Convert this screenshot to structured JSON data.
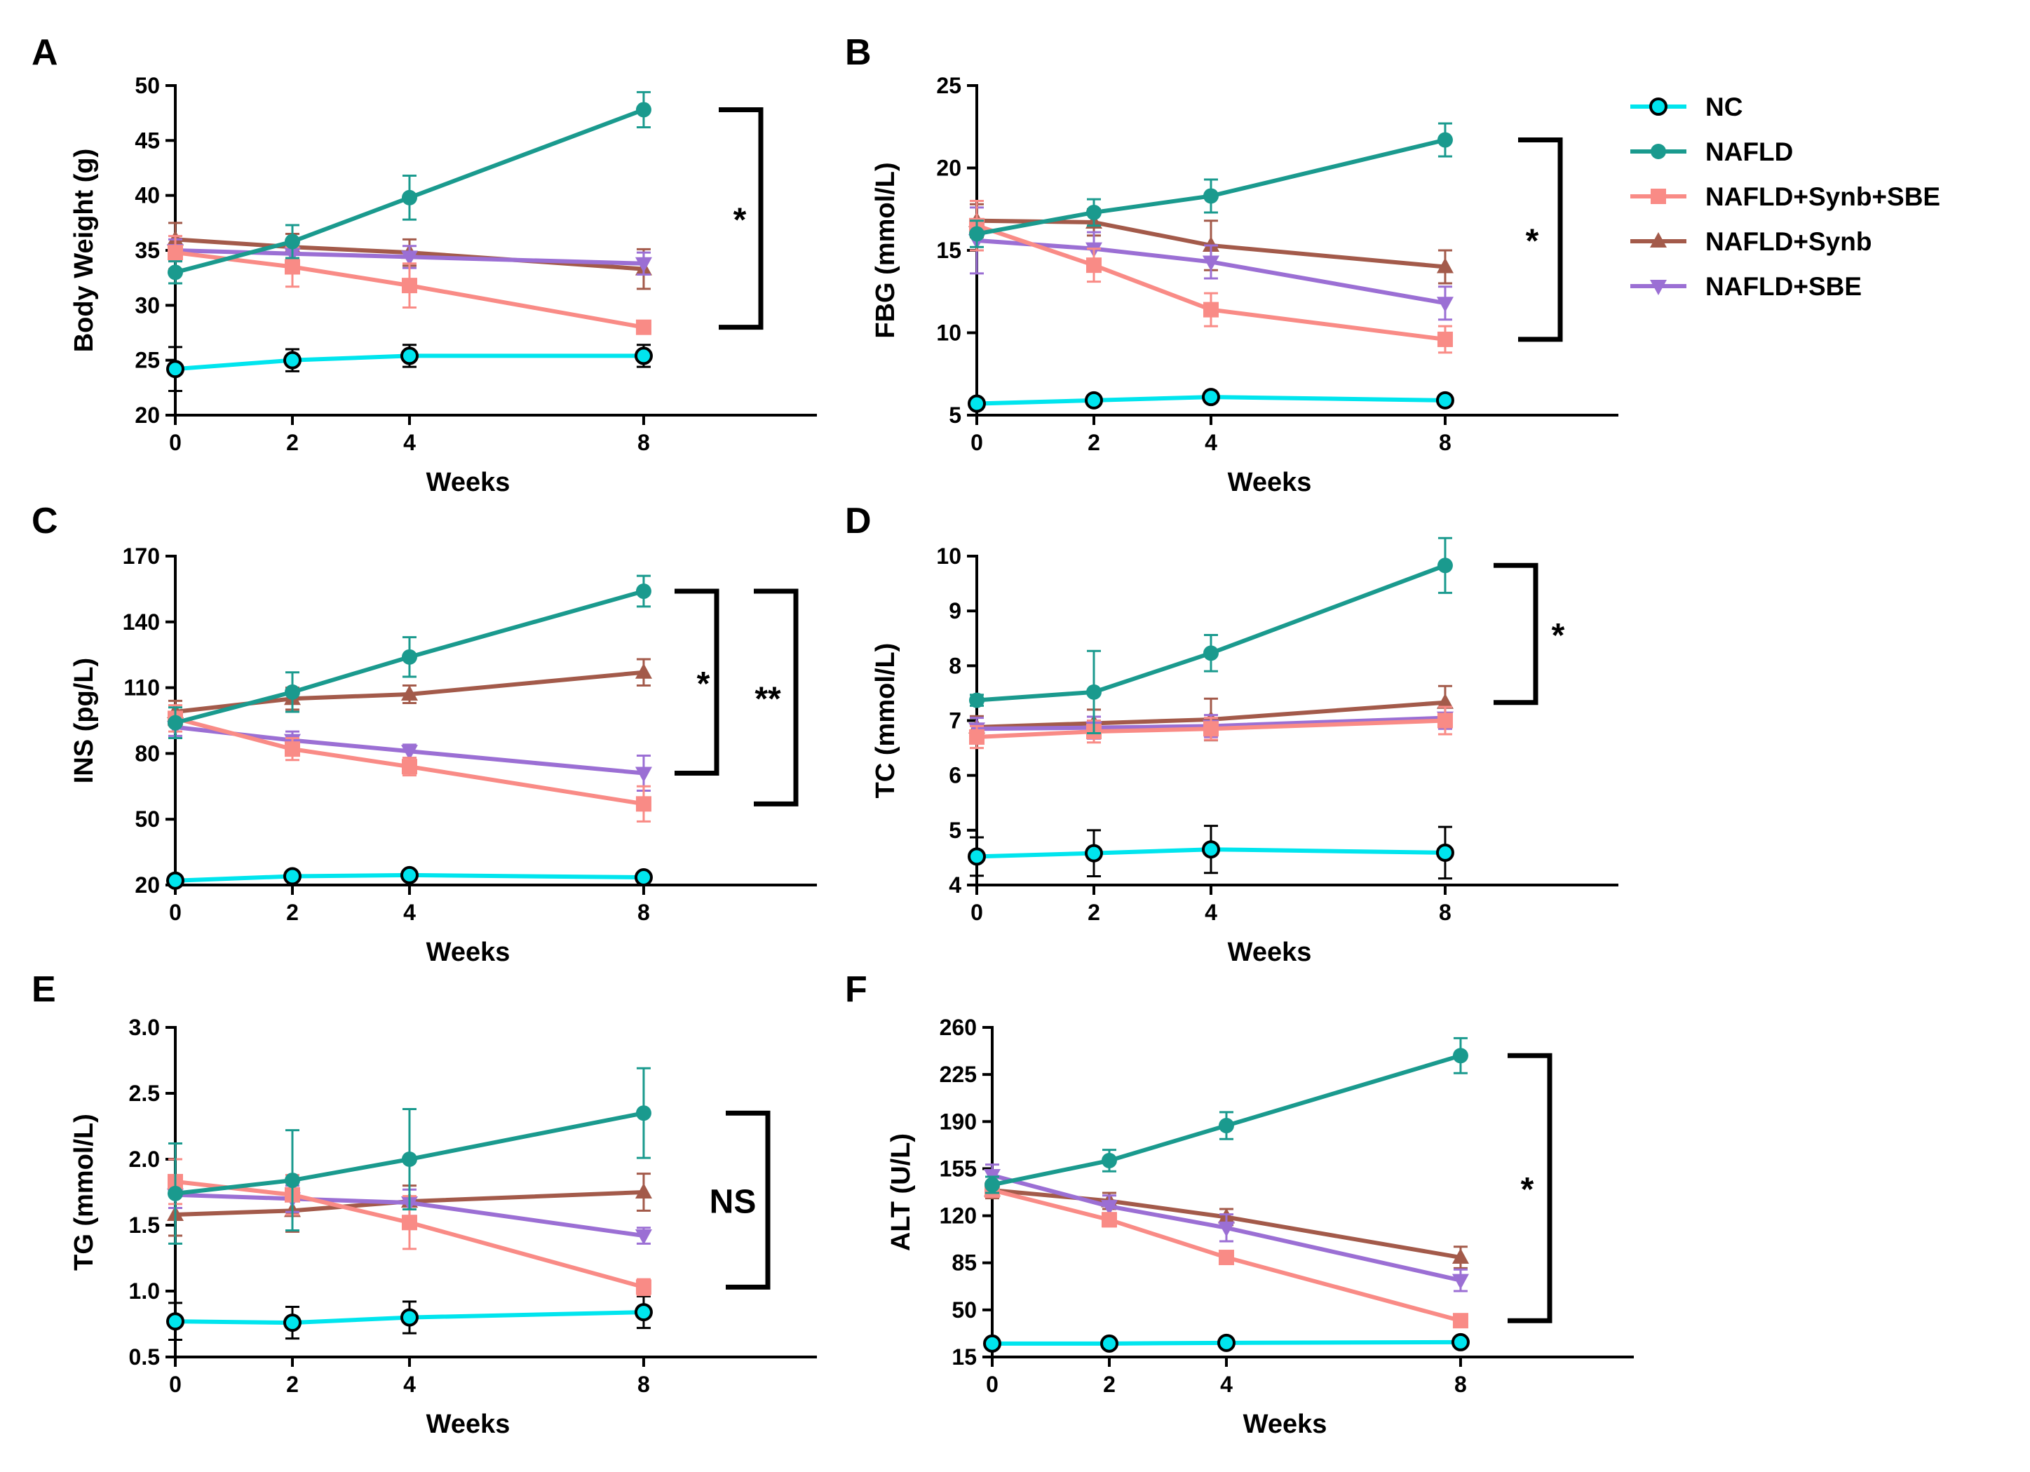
{
  "legend": [
    {
      "name": "NC",
      "color": "#00e5ee",
      "marker": "circle-open"
    },
    {
      "name": "NAFLD",
      "color": "#1a9a8e",
      "marker": "circle"
    },
    {
      "name": "NAFLD+Synb+SBE",
      "color": "#f98b86",
      "marker": "square"
    },
    {
      "name": "NAFLD+Synb",
      "color": "#a35a4a",
      "marker": "triangle-up"
    },
    {
      "name": "NAFLD+SBE",
      "color": "#9b6fd4",
      "marker": "triangle-down"
    }
  ],
  "chart_data": [
    {
      "type": "line",
      "panel": "A",
      "title": "",
      "xlabel": "Weeks",
      "ylabel": "Body Weight (g)",
      "x": [
        0,
        2,
        4,
        8
      ],
      "xticks": [
        "0",
        "2",
        "4",
        "8"
      ],
      "ylim": [
        20,
        50
      ],
      "yticks": [
        "20",
        "25",
        "30",
        "35",
        "40",
        "45",
        "50"
      ],
      "series": [
        {
          "name": "NC",
          "values": [
            24.2,
            25.0,
            25.4,
            25.4
          ],
          "errors": [
            2.0,
            1.0,
            1.0,
            1.0
          ]
        },
        {
          "name": "NAFLD",
          "values": [
            33.0,
            35.8,
            39.8,
            47.8
          ],
          "errors": [
            1.0,
            1.5,
            2.0,
            1.6
          ]
        },
        {
          "name": "NAFLD+Synb+SBE",
          "values": [
            34.8,
            33.5,
            31.8,
            28.0
          ],
          "errors": [
            1.5,
            1.8,
            2.0,
            0.5
          ]
        },
        {
          "name": "NAFLD+Synb",
          "values": [
            36.0,
            35.3,
            34.8,
            33.3
          ],
          "errors": [
            1.5,
            1.2,
            1.2,
            1.8
          ]
        },
        {
          "name": "NAFLD+SBE",
          "values": [
            35.0,
            34.7,
            34.4,
            33.8
          ],
          "errors": [
            1.0,
            1.0,
            1.0,
            1.0
          ]
        }
      ],
      "significance": [
        {
          "label": "*",
          "from": 47.8,
          "to": 28.0
        }
      ]
    },
    {
      "type": "line",
      "panel": "B",
      "title": "",
      "xlabel": "Weeks",
      "ylabel": "FBG (mmol/L)",
      "x": [
        0,
        2,
        4,
        8
      ],
      "xticks": [
        "0",
        "2",
        "4",
        "8"
      ],
      "ylim": [
        5,
        25
      ],
      "yticks": [
        "5",
        "10",
        "15",
        "20",
        "25"
      ],
      "series": [
        {
          "name": "NC",
          "values": [
            5.7,
            5.9,
            6.1,
            5.9
          ],
          "errors": [
            0.3,
            0.3,
            0.3,
            0.3
          ]
        },
        {
          "name": "NAFLD",
          "values": [
            16.0,
            17.3,
            18.3,
            21.7
          ],
          "errors": [
            0.8,
            0.8,
            1.0,
            1.0
          ]
        },
        {
          "name": "NAFLD+Synb+SBE",
          "values": [
            16.5,
            14.1,
            11.4,
            9.6
          ],
          "errors": [
            1.5,
            1.0,
            1.0,
            0.8
          ]
        },
        {
          "name": "NAFLD+Synb",
          "values": [
            16.8,
            16.7,
            15.3,
            14.0
          ],
          "errors": [
            1.0,
            0.8,
            1.5,
            1.0
          ]
        },
        {
          "name": "NAFLD+SBE",
          "values": [
            15.6,
            15.1,
            14.3,
            11.8
          ],
          "errors": [
            2.0,
            1.0,
            1.0,
            1.0
          ]
        }
      ],
      "significance": [
        {
          "label": "*",
          "from": 21.7,
          "to": 9.6
        }
      ]
    },
    {
      "type": "line",
      "panel": "C",
      "title": "",
      "xlabel": "Weeks",
      "ylabel": "INS (pg/L)",
      "x": [
        0,
        2,
        4,
        8
      ],
      "xticks": [
        "0",
        "2",
        "4",
        "8"
      ],
      "ylim": [
        20,
        170
      ],
      "yticks": [
        "20",
        "50",
        "80",
        "110",
        "140",
        "170"
      ],
      "series": [
        {
          "name": "NC",
          "values": [
            22,
            24,
            24.5,
            23.5
          ],
          "errors": [
            1,
            1,
            1,
            1
          ]
        },
        {
          "name": "NAFLD",
          "values": [
            94,
            108,
            124,
            154
          ],
          "errors": [
            7,
            9,
            9,
            7
          ]
        },
        {
          "name": "NAFLD+Synb+SBE",
          "values": [
            96,
            82,
            74,
            57
          ],
          "errors": [
            6,
            5,
            4,
            8
          ]
        },
        {
          "name": "NAFLD+Synb",
          "values": [
            99,
            105,
            107,
            117
          ],
          "errors": [
            5,
            5,
            4,
            6
          ]
        },
        {
          "name": "NAFLD+SBE",
          "values": [
            92,
            86,
            81,
            71
          ],
          "errors": [
            4,
            4,
            3,
            8
          ]
        }
      ],
      "significance": [
        {
          "label": "*",
          "from": 154,
          "to": 71
        },
        {
          "label": "**",
          "from": 154,
          "to": 57
        }
      ]
    },
    {
      "type": "line",
      "panel": "D",
      "title": "",
      "xlabel": "Weeks",
      "ylabel": "TC (mmol/L)",
      "x": [
        0,
        2,
        4,
        8
      ],
      "xticks": [
        "0",
        "2",
        "4",
        "8"
      ],
      "ylim": [
        4,
        10
      ],
      "yticks": [
        "4",
        "5",
        "6",
        "7",
        "8",
        "9",
        "10"
      ],
      "series": [
        {
          "name": "NC",
          "values": [
            4.52,
            4.58,
            4.65,
            4.59
          ],
          "errors": [
            0.35,
            0.42,
            0.43,
            0.47
          ]
        },
        {
          "name": "NAFLD",
          "values": [
            7.37,
            7.52,
            8.23,
            9.83
          ],
          "errors": [
            0.1,
            0.75,
            0.33,
            0.5
          ]
        },
        {
          "name": "NAFLD+Synb+SBE",
          "values": [
            6.7,
            6.8,
            6.85,
            7.0
          ],
          "errors": [
            0.2,
            0.2,
            0.2,
            0.25
          ]
        },
        {
          "name": "NAFLD+Synb",
          "values": [
            6.88,
            6.95,
            7.02,
            7.33
          ],
          "errors": [
            0.2,
            0.25,
            0.38,
            0.3
          ]
        },
        {
          "name": "NAFLD+SBE",
          "values": [
            6.85,
            6.87,
            6.9,
            7.05
          ],
          "errors": [
            0.2,
            0.2,
            0.2,
            0.2
          ]
        }
      ],
      "significance": [
        {
          "label": "*",
          "from": 9.83,
          "to": 7.33
        }
      ]
    },
    {
      "type": "line",
      "panel": "E",
      "title": "",
      "xlabel": "Weeks",
      "ylabel": "TG (mmol/L)",
      "x": [
        0,
        2,
        4,
        8
      ],
      "xticks": [
        "0",
        "2",
        "4",
        "8"
      ],
      "ylim": [
        0.5,
        3.0
      ],
      "yticks": [
        "0.5",
        "1.0",
        "1.5",
        "2.0",
        "2.5",
        "3.0"
      ],
      "series": [
        {
          "name": "NC",
          "values": [
            0.77,
            0.76,
            0.8,
            0.84
          ],
          "errors": [
            0.14,
            0.12,
            0.12,
            0.12
          ]
        },
        {
          "name": "NAFLD",
          "values": [
            1.74,
            1.84,
            2.0,
            2.35
          ],
          "errors": [
            0.38,
            0.38,
            0.38,
            0.34
          ]
        },
        {
          "name": "NAFLD+Synb+SBE",
          "values": [
            1.83,
            1.73,
            1.52,
            1.03
          ],
          "errors": [
            0.17,
            0.15,
            0.2,
            0.06
          ]
        },
        {
          "name": "NAFLD+Synb",
          "values": [
            1.58,
            1.61,
            1.68,
            1.75
          ],
          "errors": [
            0.16,
            0.16,
            0.12,
            0.14
          ]
        },
        {
          "name": "NAFLD+SBE",
          "values": [
            1.73,
            1.7,
            1.67,
            1.42
          ],
          "errors": [
            0.1,
            0.1,
            0.1,
            0.06
          ]
        }
      ],
      "significance": [
        {
          "label": "NS",
          "from": 2.35,
          "to": 1.03
        }
      ]
    },
    {
      "type": "line",
      "panel": "F",
      "title": "",
      "xlabel": "Weeks",
      "ylabel": "ALT (U/L)",
      "x": [
        0,
        2,
        4,
        8
      ],
      "xticks": [
        "0",
        "2",
        "4",
        "8"
      ],
      "ylim": [
        15,
        260
      ],
      "yticks": [
        "15",
        "50",
        "85",
        "120",
        "155",
        "190",
        "225",
        "260"
      ],
      "series": [
        {
          "name": "NC",
          "values": [
            25,
            25,
            25.5,
            26
          ],
          "errors": [
            2,
            2,
            2,
            2
          ]
        },
        {
          "name": "NAFLD",
          "values": [
            143,
            161,
            187,
            239
          ],
          "errors": [
            6,
            8,
            10,
            13
          ]
        },
        {
          "name": "NAFLD+Synb+SBE",
          "values": [
            139,
            117,
            89,
            42
          ],
          "errors": [
            5,
            5,
            3,
            3
          ]
        },
        {
          "name": "NAFLD+Synb",
          "values": [
            139,
            131,
            119,
            89
          ],
          "errors": [
            6,
            6,
            6,
            8
          ]
        },
        {
          "name": "NAFLD+SBE",
          "values": [
            150,
            127,
            111,
            72
          ],
          "errors": [
            8,
            8,
            10,
            8
          ]
        }
      ],
      "significance": [
        {
          "label": "*",
          "from": 239,
          "to": 42
        }
      ]
    }
  ]
}
